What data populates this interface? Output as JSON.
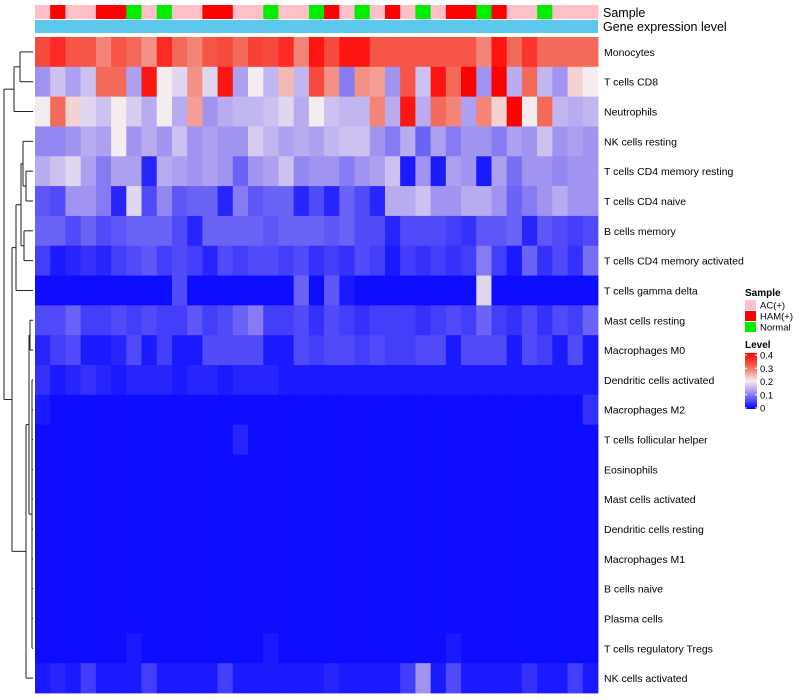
{
  "chart_data": {
    "type": "heatmap",
    "annotation_labels": {
      "sample": "Sample",
      "gene_expression": "Gene expression level"
    },
    "sample_groups": [
      "AC",
      "HAM",
      "AC",
      "AC",
      "HAM",
      "HAM",
      "N",
      "AC",
      "N",
      "AC",
      "AC",
      "HAM",
      "HAM",
      "AC",
      "AC",
      "N",
      "AC",
      "AC",
      "N",
      "HAM",
      "AC",
      "N",
      "AC",
      "HAM",
      "AC",
      "N",
      "AC",
      "HAM",
      "HAM",
      "N",
      "HAM",
      "AC",
      "AC",
      "N",
      "AC",
      "AC",
      "AC"
    ],
    "rows": [
      "Monocytes",
      "T cells CD8",
      "Neutrophils",
      "NK cells resting",
      "T cells CD4 memory resting",
      "T cells CD4 naive",
      "B cells memory",
      "T cells CD4 memory activated",
      "T cells gamma delta",
      "Mast cells resting",
      "Macrophages M0",
      "Dendritic cells activated",
      "Macrophages M2",
      "T cells follicular helper",
      "Eosinophils",
      "Mast cells activated",
      "Dendritic cells resting",
      "Macrophages M1",
      "B cells naive",
      "Plasma cells",
      "T cells regulatory  Tregs",
      "NK cells activated"
    ],
    "values": [
      [
        0.33,
        0.36,
        0.32,
        0.32,
        0.28,
        0.32,
        0.3,
        0.27,
        0.36,
        0.3,
        0.28,
        0.32,
        0.33,
        0.3,
        0.34,
        0.33,
        0.36,
        0.28,
        0.38,
        0.33,
        0.38,
        0.38,
        0.32,
        0.32,
        0.32,
        0.32,
        0.32,
        0.32,
        0.32,
        0.28,
        0.38,
        0.3,
        0.35,
        0.3,
        0.3,
        0.3,
        0.3
      ],
      [
        0.12,
        0.16,
        0.13,
        0.16,
        0.3,
        0.3,
        0.13,
        0.38,
        0.2,
        0.18,
        0.27,
        0.18,
        0.38,
        0.13,
        0.2,
        0.15,
        0.24,
        0.15,
        0.33,
        0.27,
        0.1,
        0.27,
        0.26,
        0.12,
        0.32,
        0.16,
        0.38,
        0.3,
        0.4,
        0.12,
        0.4,
        0.14,
        0.3,
        0.15,
        0.12,
        0.22,
        0.2
      ],
      [
        0.2,
        0.3,
        0.22,
        0.18,
        0.16,
        0.2,
        0.17,
        0.14,
        0.2,
        0.14,
        0.26,
        0.12,
        0.14,
        0.15,
        0.15,
        0.16,
        0.18,
        0.14,
        0.2,
        0.16,
        0.15,
        0.15,
        0.28,
        0.14,
        0.38,
        0.14,
        0.3,
        0.28,
        0.13,
        0.28,
        0.22,
        0.4,
        0.2,
        0.3,
        0.15,
        0.14,
        0.15
      ],
      [
        0.11,
        0.11,
        0.12,
        0.14,
        0.13,
        0.2,
        0.12,
        0.14,
        0.12,
        0.16,
        0.12,
        0.13,
        0.12,
        0.12,
        0.17,
        0.15,
        0.13,
        0.14,
        0.13,
        0.15,
        0.16,
        0.16,
        0.12,
        0.1,
        0.14,
        0.08,
        0.13,
        0.1,
        0.12,
        0.12,
        0.1,
        0.13,
        0.12,
        0.16,
        0.12,
        0.13,
        0.12
      ],
      [
        0.14,
        0.16,
        0.18,
        0.13,
        0.1,
        0.13,
        0.13,
        0.03,
        0.14,
        0.13,
        0.12,
        0.13,
        0.12,
        0.08,
        0.12,
        0.13,
        0.16,
        0.11,
        0.12,
        0.12,
        0.1,
        0.12,
        0.13,
        0.16,
        0.02,
        0.12,
        0.02,
        0.13,
        0.12,
        0.02,
        0.13,
        0.09,
        0.12,
        0.12,
        0.11,
        0.12,
        0.12
      ],
      [
        0.07,
        0.06,
        0.12,
        0.12,
        0.1,
        0.03,
        0.18,
        0.06,
        0.11,
        0.07,
        0.08,
        0.08,
        0.03,
        0.1,
        0.07,
        0.08,
        0.08,
        0.03,
        0.06,
        0.03,
        0.08,
        0.06,
        0.03,
        0.14,
        0.14,
        0.16,
        0.12,
        0.12,
        0.14,
        0.14,
        0.12,
        0.08,
        0.1,
        0.12,
        0.14,
        0.12,
        0.12
      ],
      [
        0.08,
        0.08,
        0.06,
        0.08,
        0.06,
        0.07,
        0.08,
        0.08,
        0.08,
        0.06,
        0.03,
        0.08,
        0.08,
        0.08,
        0.08,
        0.07,
        0.08,
        0.08,
        0.08,
        0.07,
        0.08,
        0.06,
        0.06,
        0.03,
        0.06,
        0.06,
        0.06,
        0.05,
        0.04,
        0.07,
        0.07,
        0.08,
        0.03,
        0.07,
        0.06,
        0.05,
        0.06
      ],
      [
        0.05,
        0.02,
        0.03,
        0.04,
        0.03,
        0.05,
        0.06,
        0.07,
        0.05,
        0.06,
        0.05,
        0.03,
        0.06,
        0.05,
        0.06,
        0.06,
        0.05,
        0.06,
        0.04,
        0.05,
        0.04,
        0.06,
        0.05,
        0.02,
        0.05,
        0.04,
        0.05,
        0.04,
        0.05,
        0.1,
        0.05,
        0.02,
        0.08,
        0.04,
        0.06,
        0.04,
        0.09
      ],
      [
        0.01,
        0.01,
        0.01,
        0.01,
        0.01,
        0.01,
        0.01,
        0.01,
        0.01,
        0.06,
        0.01,
        0.01,
        0.01,
        0.01,
        0.01,
        0.01,
        0.01,
        0.08,
        0.01,
        0.07,
        0.02,
        0.01,
        0.01,
        0.01,
        0.01,
        0.01,
        0.01,
        0.01,
        0.01,
        0.18,
        0.01,
        0.01,
        0.01,
        0.01,
        0.01,
        0.01,
        0.01
      ],
      [
        0.06,
        0.06,
        0.08,
        0.05,
        0.05,
        0.06,
        0.05,
        0.06,
        0.05,
        0.05,
        0.07,
        0.05,
        0.06,
        0.08,
        0.1,
        0.05,
        0.05,
        0.06,
        0.04,
        0.06,
        0.05,
        0.04,
        0.05,
        0.05,
        0.05,
        0.04,
        0.05,
        0.06,
        0.05,
        0.08,
        0.05,
        0.04,
        0.06,
        0.04,
        0.06,
        0.05,
        0.08
      ],
      [
        0.03,
        0.05,
        0.06,
        0.02,
        0.02,
        0.03,
        0.06,
        0.02,
        0.05,
        0.02,
        0.02,
        0.06,
        0.06,
        0.06,
        0.06,
        0.02,
        0.02,
        0.06,
        0.05,
        0.06,
        0.06,
        0.05,
        0.06,
        0.05,
        0.05,
        0.06,
        0.06,
        0.02,
        0.06,
        0.06,
        0.06,
        0.02,
        0.06,
        0.05,
        0.02,
        0.06,
        0.02
      ],
      [
        0.04,
        0.02,
        0.03,
        0.04,
        0.03,
        0.02,
        0.03,
        0.03,
        0.03,
        0.02,
        0.03,
        0.03,
        0.02,
        0.03,
        0.03,
        0.03,
        0.02,
        0.02,
        0.02,
        0.02,
        0.02,
        0.02,
        0.02,
        0.02,
        0.02,
        0.02,
        0.02,
        0.02,
        0.02,
        0.02,
        0.02,
        0.02,
        0.02,
        0.02,
        0.02,
        0.02,
        0.02
      ],
      [
        0.02,
        0.01,
        0.01,
        0.01,
        0.01,
        0.01,
        0.01,
        0.01,
        0.01,
        0.01,
        0.01,
        0.01,
        0.01,
        0.01,
        0.01,
        0.01,
        0.01,
        0.01,
        0.01,
        0.01,
        0.01,
        0.01,
        0.01,
        0.01,
        0.01,
        0.01,
        0.01,
        0.01,
        0.01,
        0.01,
        0.01,
        0.01,
        0.01,
        0.01,
        0.01,
        0.01,
        0.04
      ],
      [
        0.01,
        0.01,
        0.01,
        0.01,
        0.01,
        0.01,
        0.01,
        0.01,
        0.01,
        0.01,
        0.01,
        0.01,
        0.01,
        0.03,
        0.01,
        0.01,
        0.01,
        0.01,
        0.01,
        0.01,
        0.01,
        0.01,
        0.01,
        0.01,
        0.01,
        0.01,
        0.01,
        0.01,
        0.01,
        0.01,
        0.01,
        0.01,
        0.01,
        0.01,
        0.01,
        0.01,
        0.01
      ],
      [
        0.01,
        0.01,
        0.01,
        0.01,
        0.01,
        0.01,
        0.01,
        0.01,
        0.01,
        0.01,
        0.01,
        0.01,
        0.01,
        0.01,
        0.01,
        0.01,
        0.01,
        0.01,
        0.01,
        0.01,
        0.01,
        0.01,
        0.01,
        0.01,
        0.01,
        0.01,
        0.01,
        0.01,
        0.01,
        0.01,
        0.01,
        0.01,
        0.01,
        0.01,
        0.01,
        0.01,
        0.01
      ],
      [
        0.01,
        0.01,
        0.01,
        0.01,
        0.01,
        0.01,
        0.01,
        0.01,
        0.01,
        0.01,
        0.01,
        0.01,
        0.01,
        0.01,
        0.01,
        0.01,
        0.01,
        0.01,
        0.01,
        0.01,
        0.01,
        0.01,
        0.01,
        0.01,
        0.01,
        0.01,
        0.01,
        0.01,
        0.01,
        0.01,
        0.01,
        0.01,
        0.01,
        0.01,
        0.01,
        0.01,
        0.01
      ],
      [
        0.01,
        0.01,
        0.01,
        0.01,
        0.01,
        0.01,
        0.01,
        0.01,
        0.01,
        0.01,
        0.01,
        0.01,
        0.01,
        0.01,
        0.01,
        0.01,
        0.01,
        0.01,
        0.01,
        0.01,
        0.01,
        0.01,
        0.01,
        0.01,
        0.01,
        0.01,
        0.01,
        0.01,
        0.01,
        0.01,
        0.01,
        0.01,
        0.01,
        0.01,
        0.01,
        0.01,
        0.01
      ],
      [
        0.01,
        0.01,
        0.01,
        0.01,
        0.01,
        0.01,
        0.01,
        0.01,
        0.01,
        0.01,
        0.01,
        0.01,
        0.01,
        0.01,
        0.01,
        0.01,
        0.01,
        0.01,
        0.01,
        0.01,
        0.01,
        0.01,
        0.01,
        0.01,
        0.01,
        0.01,
        0.01,
        0.01,
        0.01,
        0.01,
        0.01,
        0.01,
        0.01,
        0.01,
        0.01,
        0.01,
        0.01
      ],
      [
        0.01,
        0.01,
        0.01,
        0.01,
        0.01,
        0.01,
        0.01,
        0.01,
        0.01,
        0.01,
        0.01,
        0.01,
        0.01,
        0.01,
        0.01,
        0.01,
        0.01,
        0.01,
        0.01,
        0.01,
        0.01,
        0.01,
        0.01,
        0.01,
        0.01,
        0.01,
        0.01,
        0.01,
        0.01,
        0.01,
        0.01,
        0.01,
        0.01,
        0.01,
        0.01,
        0.01,
        0.01
      ],
      [
        0.01,
        0.01,
        0.01,
        0.01,
        0.01,
        0.01,
        0.01,
        0.01,
        0.01,
        0.01,
        0.01,
        0.01,
        0.01,
        0.01,
        0.01,
        0.01,
        0.01,
        0.01,
        0.01,
        0.01,
        0.01,
        0.01,
        0.01,
        0.01,
        0.01,
        0.01,
        0.01,
        0.01,
        0.01,
        0.01,
        0.01,
        0.01,
        0.01,
        0.01,
        0.01,
        0.01,
        0.01
      ],
      [
        0.01,
        0.01,
        0.01,
        0.01,
        0.01,
        0.01,
        0.02,
        0.01,
        0.01,
        0.01,
        0.01,
        0.01,
        0.01,
        0.01,
        0.01,
        0.02,
        0.01,
        0.01,
        0.01,
        0.01,
        0.01,
        0.01,
        0.01,
        0.01,
        0.01,
        0.01,
        0.01,
        0.02,
        0.01,
        0.01,
        0.01,
        0.01,
        0.01,
        0.01,
        0.01,
        0.01,
        0.01
      ],
      [
        0.02,
        0.03,
        0.02,
        0.05,
        0.02,
        0.02,
        0.02,
        0.05,
        0.02,
        0.02,
        0.02,
        0.02,
        0.05,
        0.02,
        0.02,
        0.02,
        0.02,
        0.02,
        0.02,
        0.03,
        0.02,
        0.02,
        0.02,
        0.02,
        0.05,
        0.12,
        0.02,
        0.06,
        0.02,
        0.02,
        0.02,
        0.02,
        0.04,
        0.02,
        0.02,
        0.05,
        0.02
      ]
    ],
    "color_scale": {
      "min": 0,
      "max": 0.4,
      "stops": [
        {
          "value": 0,
          "color": "#0000ff"
        },
        {
          "value": 0.13,
          "color": "#aea0f0"
        },
        {
          "value": 0.2,
          "color": "#f5ecf0"
        },
        {
          "value": 0.3,
          "color": "#f46a5a"
        },
        {
          "value": 0.4,
          "color": "#ff0000"
        }
      ]
    },
    "legend": {
      "sample_title": "Sample",
      "sample_entries": [
        {
          "key": "AC",
          "label": "AC(+)",
          "color": "#ffc0cb"
        },
        {
          "key": "HAM",
          "label": "HAM(+)",
          "color": "#ff0000"
        },
        {
          "key": "N",
          "label": "Normal",
          "color": "#00ee00"
        }
      ],
      "level_title": "Level",
      "level_ticks": [
        "0.4",
        "0.3",
        "0.2",
        "0.1",
        "0"
      ]
    },
    "gene_expression_color": "#5bc8ec"
  }
}
